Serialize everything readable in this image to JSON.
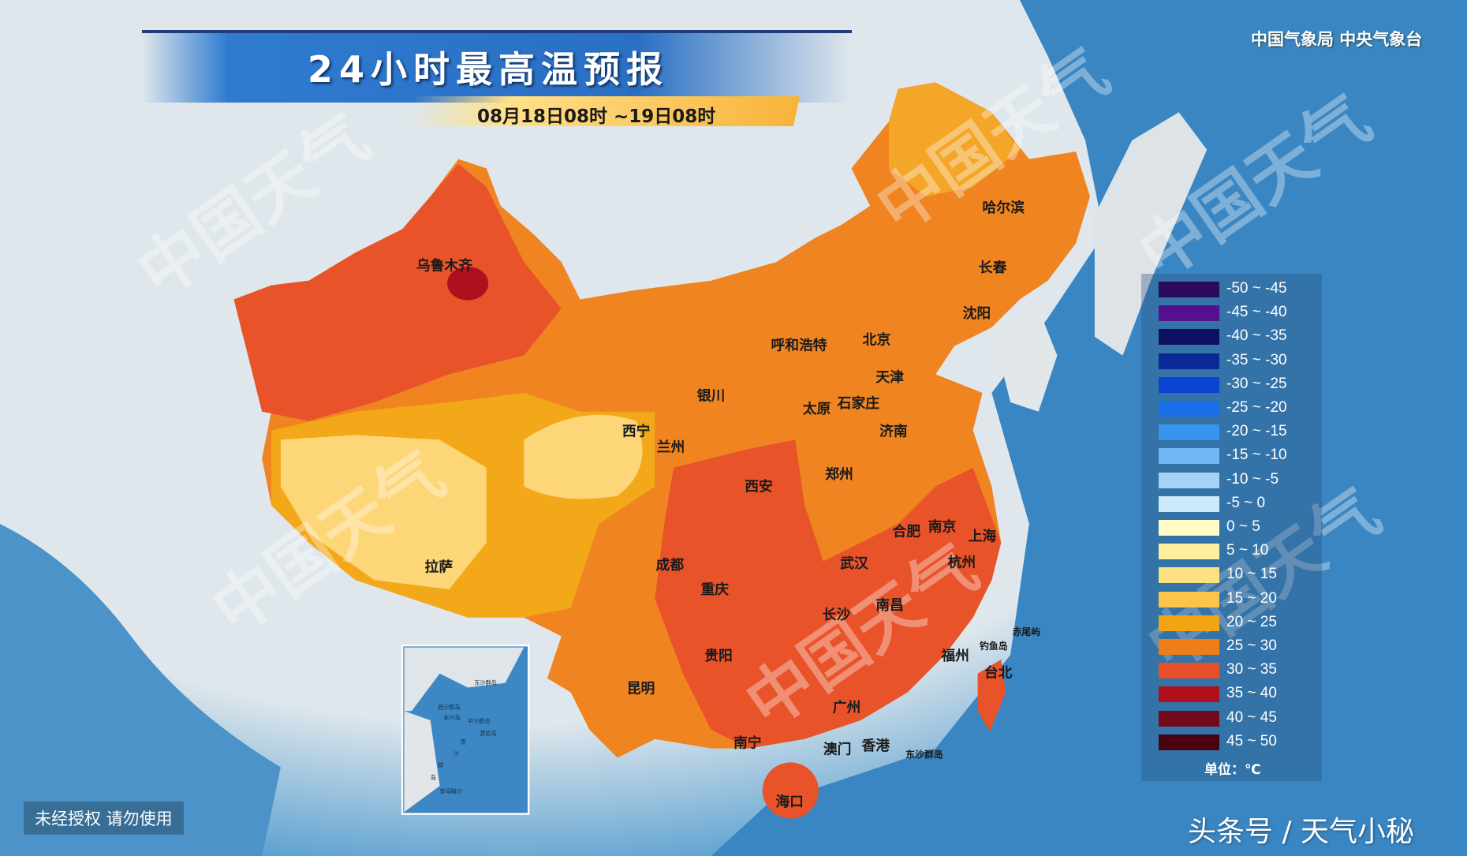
{
  "header": {
    "title": "24小时最高温预报",
    "date_range": "08月18日08时 ~19日08时",
    "agency": "中国气象局 中央气象台"
  },
  "watermark": "中国天气",
  "cities": [
    "乌鲁木齐",
    "哈尔滨",
    "长春",
    "沈阳",
    "呼和浩特",
    "北京",
    "天津",
    "银川",
    "太原",
    "石家庄",
    "济南",
    "西宁",
    "兰州",
    "西安",
    "郑州",
    "合肥",
    "南京",
    "上海",
    "杭州",
    "武汉",
    "拉萨",
    "成都",
    "重庆",
    "长沙",
    "南昌",
    "贵阳",
    "昆明",
    "福州",
    "台北",
    "广州",
    "南宁",
    "澳门",
    "香港",
    "海口"
  ],
  "small_labels": [
    "钓鱼岛",
    "赤尾屿",
    "东沙群岛"
  ],
  "inset_labels": [
    "东沙群岛",
    "西沙群岛",
    "永兴岛",
    "中沙群岛",
    "黄岩岛",
    "南",
    "沙",
    "群",
    "岛",
    "曾母暗沙"
  ],
  "legend": {
    "items": [
      {
        "label": "-50 ~ -45",
        "color": "#2a0a5a"
      },
      {
        "label": "-45 ~ -40",
        "color": "#54108e"
      },
      {
        "label": "-40 ~ -35",
        "color": "#0b1060"
      },
      {
        "label": "-35 ~ -30",
        "color": "#0a2896"
      },
      {
        "label": "-30 ~ -25",
        "color": "#0a44d0"
      },
      {
        "label": "-25 ~ -20",
        "color": "#1a6ee6"
      },
      {
        "label": "-20 ~ -15",
        "color": "#3595ef"
      },
      {
        "label": "-15 ~ -10",
        "color": "#6fb8f5"
      },
      {
        "label": "-10 ~ -5",
        "color": "#a6d3f5"
      },
      {
        "label": "-5 ~ 0",
        "color": "#cde9fb"
      },
      {
        "label": "0 ~ 5",
        "color": "#fffcc8"
      },
      {
        "label": "5 ~ 10",
        "color": "#fdeea0"
      },
      {
        "label": "10 ~ 15",
        "color": "#fde180"
      },
      {
        "label": "15 ~ 20",
        "color": "#fbc54a"
      },
      {
        "label": "20 ~ 25",
        "color": "#f2a412"
      },
      {
        "label": "25 ~ 30",
        "color": "#ef7e18"
      },
      {
        "label": "30 ~ 35",
        "color": "#e8502a"
      },
      {
        "label": "35 ~ 40",
        "color": "#b0101e"
      },
      {
        "label": "40 ~ 45",
        "color": "#720a1c"
      },
      {
        "label": "45 ~ 50",
        "color": "#4a0212"
      }
    ],
    "unit": "单位：℃"
  },
  "footer": {
    "warning": "未经授权 请勿使用",
    "source": "头条号 / 天气小秘"
  }
}
